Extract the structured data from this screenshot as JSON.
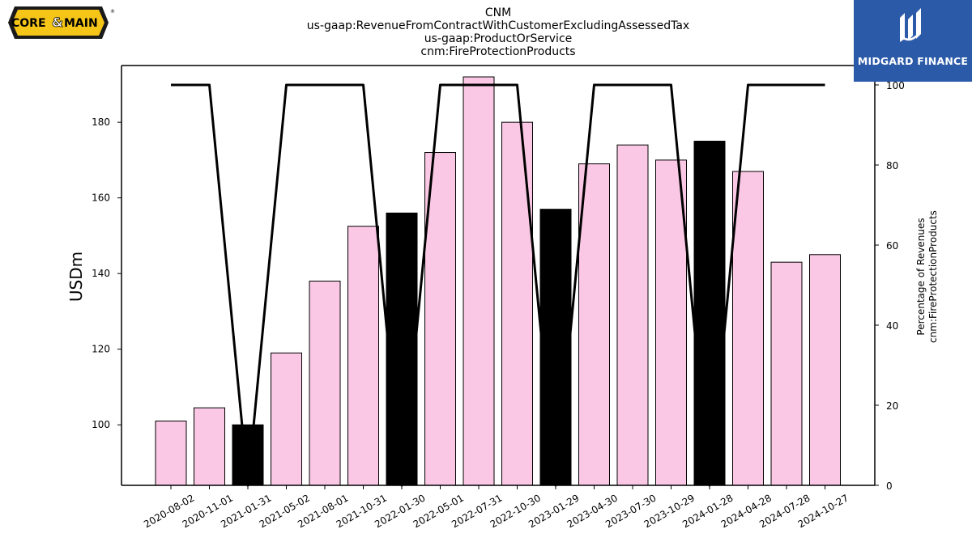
{
  "logos": {
    "left_text_core": "CORE",
    "left_text_amp": "&",
    "left_text_main": "MAIN",
    "left_registered": "®",
    "right_text": "MIDGARD FINANCE"
  },
  "colors": {
    "bar_normal": "#fac8e4",
    "bar_highlight": "#000000",
    "line": "#000000",
    "logo_right_bg": "#2b5aa8",
    "logo_left_fill": "#f5c518"
  },
  "chart_data": {
    "type": "bar",
    "title_lines": [
      "CNM",
      "us-gaap:RevenueFromContractWithCustomerExcludingAssessedTax",
      "us-gaap:ProductOrService",
      "cnm:FireProtectionProducts"
    ],
    "ylabel": "USDm",
    "ylabel_right": [
      "Percentage of Revenues",
      "cnm:FireProtectionProducts"
    ],
    "categories": [
      "2020-08-02",
      "2020-11-01",
      "2021-01-31",
      "2021-05-02",
      "2021-08-01",
      "2021-10-31",
      "2022-01-30",
      "2022-05-01",
      "2022-07-31",
      "2022-10-30",
      "2023-01-29",
      "2023-04-30",
      "2023-07-30",
      "2023-10-29",
      "2024-01-28",
      "2024-04-28",
      "2024-07-28",
      "2024-10-27"
    ],
    "values": [
      101,
      104.5,
      100,
      119,
      138,
      152.5,
      156,
      172,
      192,
      180,
      157,
      169,
      174,
      170,
      175,
      167,
      143,
      145
    ],
    "highlighted": [
      false,
      false,
      true,
      false,
      false,
      false,
      true,
      false,
      false,
      false,
      true,
      false,
      false,
      false,
      true,
      false,
      false,
      false
    ],
    "line_values": [
      100,
      100,
      0,
      100,
      100,
      100,
      0,
      100,
      100,
      100,
      0,
      100,
      100,
      100,
      0,
      100,
      100,
      100
    ],
    "ylim": [
      84,
      195
    ],
    "yticks": [
      100,
      120,
      140,
      160,
      180
    ],
    "ylim_right": [
      0,
      100
    ],
    "yticks_right": [
      0,
      20,
      40,
      60,
      80,
      100
    ]
  }
}
